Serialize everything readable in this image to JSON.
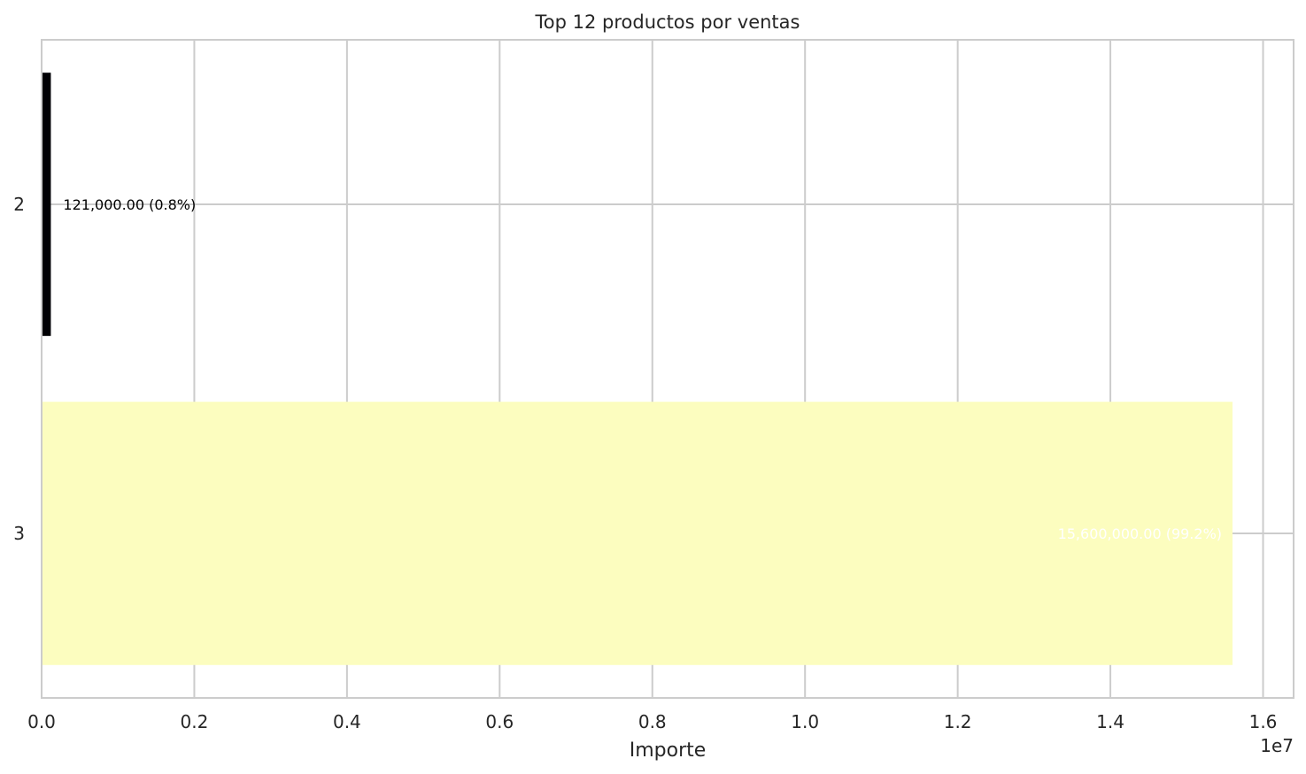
{
  "chart_data": {
    "type": "bar",
    "orientation": "horizontal",
    "title": "Top 12 productos por ventas",
    "xlabel": "Importe",
    "ylabel": "",
    "x_offset_label": "1e7",
    "xlim": [
      0,
      16400000
    ],
    "x_ticks": [
      0,
      2000000,
      4000000,
      6000000,
      8000000,
      10000000,
      12000000,
      14000000,
      16000000
    ],
    "x_tick_labels": [
      "0.0",
      "0.2",
      "0.4",
      "0.6",
      "0.8",
      "1.0",
      "1.2",
      "1.4",
      "1.6"
    ],
    "categories": [
      "2",
      "3"
    ],
    "values": [
      121000,
      15600000
    ],
    "bar_colors": [
      "#000004",
      "#fcfdbf"
    ],
    "data_labels": [
      "121,000.00 (0.8%)",
      "15,600,000.00 (99.2%)"
    ],
    "data_label_colors": [
      "#000000",
      "#ffffff"
    ],
    "grid": true,
    "legend": "none"
  }
}
